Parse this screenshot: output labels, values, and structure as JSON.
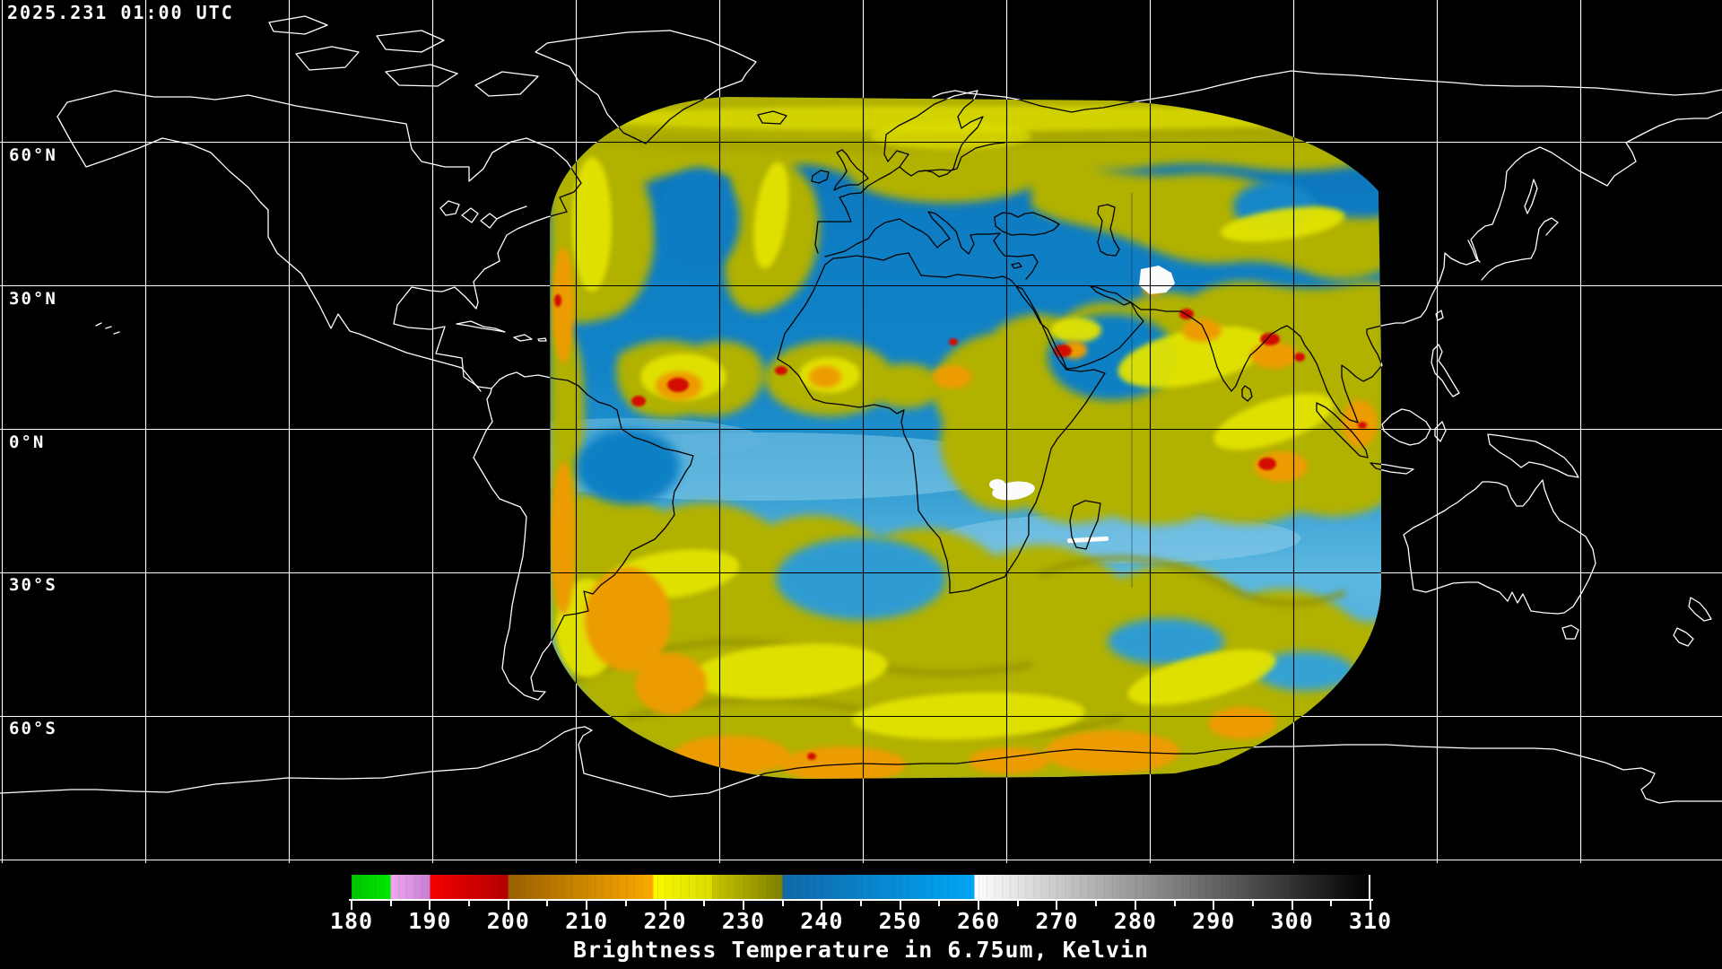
{
  "header": {
    "timestamp": "2025.231 01:00 UTC"
  },
  "map": {
    "latitude_labels": [
      "60°N",
      "30°N",
      "0°N",
      "30°S",
      "60°S"
    ],
    "grid_interval_degrees": 30,
    "background_color": "#000000",
    "gridline_color_over_ocean": "#ffffff",
    "gridline_color_over_data": "#000000",
    "coastline_color_over_ocean": "#ffffff",
    "coastline_color_over_data": "#000000"
  },
  "colorbar": {
    "title": "Brightness Temperature in 6.75um, Kelvin",
    "unit": "Kelvin",
    "min": 180,
    "max": 310,
    "tick_labels": [
      "180",
      "190",
      "200",
      "210",
      "220",
      "230",
      "240",
      "250",
      "260",
      "270",
      "280",
      "290",
      "300",
      "310"
    ],
    "segments": [
      {
        "from": 180,
        "to": 185,
        "start": "#00c400",
        "end": "#00e800"
      },
      {
        "from": 185,
        "to": 190,
        "start": "#f2a6f2",
        "end": "#c67fd2"
      },
      {
        "from": 190,
        "to": 200,
        "start": "#f40000",
        "end": "#b40000"
      },
      {
        "from": 200,
        "to": 218.5,
        "start": "#996000",
        "end": "#fcaa00"
      },
      {
        "from": 218.5,
        "to": 226,
        "start": "#fafa00",
        "end": "#dcdc00"
      },
      {
        "from": 226,
        "to": 235,
        "start": "#c6c600",
        "end": "#7f7f00"
      },
      {
        "from": 235,
        "to": 259.5,
        "start": "#1168a8",
        "end": "#00a6f6"
      },
      {
        "from": 259.5,
        "to": 310,
        "start": "#ffffff",
        "end": "#000000"
      }
    ]
  },
  "chart_data": {
    "type": "heatmap",
    "title": "Brightness Temperature in 6.75um, Kelvin",
    "timestamp_utc": "2025.231 01:00 UTC",
    "unit": "Kelvin",
    "wavelength": "6.75um",
    "colorbar_ticks": [
      180,
      190,
      200,
      210,
      220,
      230,
      240,
      250,
      260,
      270,
      280,
      290,
      300,
      310
    ],
    "range": [
      180,
      310
    ],
    "latitude_labels": [
      "60°N",
      "30°N",
      "0°N",
      "30°S",
      "60°S"
    ],
    "legend_position": "bottom"
  }
}
